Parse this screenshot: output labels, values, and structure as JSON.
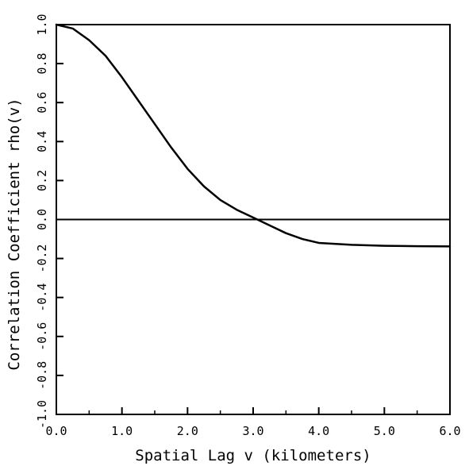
{
  "chart_data": {
    "type": "line",
    "title": "",
    "xlabel": "Spatial Lag v (kilometers)",
    "ylabel": "Correlation Coefficient rho(v)",
    "xlim": [
      0.0,
      6.0
    ],
    "ylim": [
      -1.0,
      1.0
    ],
    "x_ticks": [
      0.0,
      1.0,
      2.0,
      3.0,
      4.0,
      5.0,
      6.0
    ],
    "x_tick_labels": [
      "0.0",
      "1.0",
      "2.0",
      "3.0",
      "4.0",
      "5.0",
      "6.0"
    ],
    "y_ticks": [
      -1.0,
      -0.8,
      -0.6,
      -0.4,
      -0.2,
      0.0,
      0.2,
      0.4,
      0.6,
      0.8,
      1.0
    ],
    "y_tick_labels": [
      "-1.0",
      "-0.8",
      "-0.6",
      "-0.4",
      "-0.2",
      "0.0",
      "0.2",
      "0.4",
      "0.6",
      "0.8",
      "1.0"
    ],
    "grid": false,
    "reference_line": {
      "y": 0.0
    },
    "series": [
      {
        "x": [
          0.0,
          0.25,
          0.5,
          0.75,
          1.0,
          1.25,
          1.5,
          1.75,
          2.0,
          2.25,
          2.5,
          2.75,
          3.0,
          3.25,
          3.5,
          3.75,
          4.0,
          4.5,
          5.0,
          5.5,
          6.0
        ],
        "y": [
          1.0,
          0.98,
          0.92,
          0.84,
          0.73,
          0.61,
          0.49,
          0.37,
          0.26,
          0.17,
          0.1,
          0.05,
          0.01,
          -0.03,
          -0.07,
          -0.1,
          -0.12,
          -0.13,
          -0.135,
          -0.137,
          -0.138
        ]
      }
    ]
  }
}
